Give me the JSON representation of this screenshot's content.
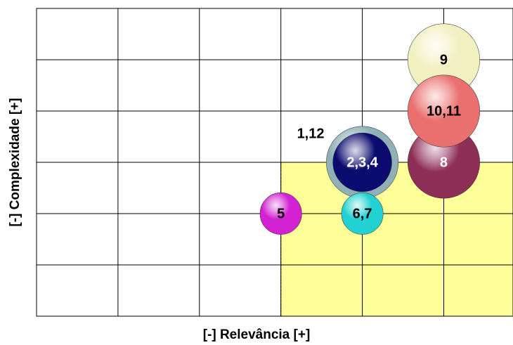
{
  "chart_data": {
    "type": "bubble",
    "x_label": "[-] Relevância [+]",
    "y_label": "[-] Complexidade [+]",
    "xlim": [
      0,
      5.85
    ],
    "ylim": [
      0,
      6
    ],
    "xticks": [
      0,
      1,
      2,
      3,
      4,
      5
    ],
    "yticks": [
      0,
      1,
      2,
      3,
      4,
      5,
      6
    ],
    "grid": true,
    "region": {
      "x": [
        3,
        5.85
      ],
      "y": [
        0,
        3
      ],
      "color": "#ffff99"
    },
    "series": [
      {
        "name": "9",
        "x": 5,
        "y": 5,
        "size": 9,
        "color": "#f2f0c0",
        "text_color": "#000000"
      },
      {
        "name": "8",
        "x": 5,
        "y": 3,
        "size": 9,
        "color": "#8e2f58",
        "text_color": "#ffffff"
      },
      {
        "name": "10,11",
        "x": 5,
        "y": 4,
        "size": 9,
        "color": "#ea7070",
        "text_color": "#000000"
      },
      {
        "name": "1,12",
        "x": 4,
        "y": 3,
        "size": 9,
        "color": "#90b0b8",
        "text_color": "#000000",
        "label_position": "upper-left"
      },
      {
        "name": "2,3,4",
        "x": 4,
        "y": 3,
        "size": 6,
        "color": "#0c0c70",
        "text_color": "#ffffff"
      },
      {
        "name": "6,7",
        "x": 4,
        "y": 2,
        "size": 3,
        "color": "#22d2d2",
        "text_color": "#000000"
      },
      {
        "name": "5",
        "x": 3,
        "y": 2,
        "size": 3,
        "color": "#d222d2",
        "text_color": "#000000"
      }
    ]
  }
}
